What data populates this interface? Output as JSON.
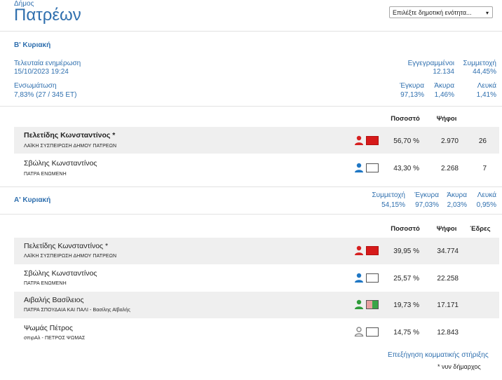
{
  "header": {
    "small_label": "Δήμος",
    "title": "Πατρέων",
    "select_label": "Επιλέξτε δημοτική ενότητα...",
    "select_arrow": "▾"
  },
  "round2": {
    "title": "Β' Κυριακή",
    "updated_label": "Τελευταία ενημέρωση",
    "updated_value": "15/10/2023 19:24",
    "integration_label": "Ενσωμάτωση",
    "integration_value": "7,83% (27 / 345 ΕΤ)",
    "registered_label": "Εγγεγραμμένοι",
    "registered_value": "12.134",
    "turnout_label": "Συμμετοχή",
    "turnout_value": "44,45%",
    "valid_label": "Έγκυρα",
    "valid_value": "97,13%",
    "invalid_label": "Άκυρα",
    "invalid_value": "1,46%",
    "blank_label": "Λευκά",
    "blank_value": "1,41%",
    "col_percent": "Ποσοστό",
    "col_votes": "Ψήφοι",
    "candidates": [
      {
        "name": "Πελετίδης Κωνσταντίνος *",
        "party": "ΛΑΪΚΗ ΣΥΣΠΕΙΡΩΣΗ ΔΗΜΟΥ ΠΑΤΡΕΩΝ",
        "percent": "56,70 %",
        "votes": "2.970",
        "seats": "26",
        "person_color": "#d62020",
        "flag": "red"
      },
      {
        "name": "Σβώλης Κωνσταντίνος",
        "party": "ΠΑΤΡΑ ΕΝΩΜΕΝΗ",
        "percent": "43,30 %",
        "votes": "2.268",
        "seats": "7",
        "person_color": "#1f77c4",
        "flag": "white"
      }
    ]
  },
  "round1": {
    "title": "Α' Κυριακή",
    "turnout_label": "Συμμετοχή",
    "turnout_value": "54,15%",
    "valid_label": "Έγκυρα",
    "valid_value": "97,03%",
    "invalid_label": "Άκυρα",
    "invalid_value": "2,03%",
    "blank_label": "Λευκά",
    "blank_value": "0,95%",
    "col_percent": "Ποσοστό",
    "col_votes": "Ψήφοι",
    "col_seats": "Έδρες",
    "candidates": [
      {
        "name": "Πελετίδης Κωνσταντίνος *",
        "party": "ΛΑΪΚΗ ΣΥΣΠΕΙΡΩΣΗ ΔΗΜΟΥ ΠΑΤΡΕΩΝ",
        "percent": "39,95 %",
        "votes": "34.774",
        "person_color": "#d62020",
        "flag": "red"
      },
      {
        "name": "Σβώλης Κωνσταντίνος",
        "party": "ΠΑΤΡΑ ΕΝΩΜΕΝΗ",
        "percent": "25,57 %",
        "votes": "22.258",
        "person_color": "#1f77c4",
        "flag": "white"
      },
      {
        "name": "Αιβαλής Βασίλειος",
        "party": "ΠΑΤΡΑ ΣΠΟΥΔΑΙΑ ΚΑΙ ΠΑΛΙ - Βασίλης Αϊβαλής",
        "percent": "19,73 %",
        "votes": "17.171",
        "person_color": "#2e9c3a",
        "flag": "greenpink"
      },
      {
        "name": "Ψωμάς Πέτρος",
        "party": "σπιρΑλ - ΠΕΤΡΟΣ ΨΩΜΑΣ",
        "percent": "14,75 %",
        "votes": "12.843",
        "person_color": "#9a9a9a",
        "flag": "white"
      }
    ]
  },
  "footer": {
    "link": "Επεξήγηση κομματικής στήριξης",
    "note": "* νυν δήμαρχος"
  }
}
